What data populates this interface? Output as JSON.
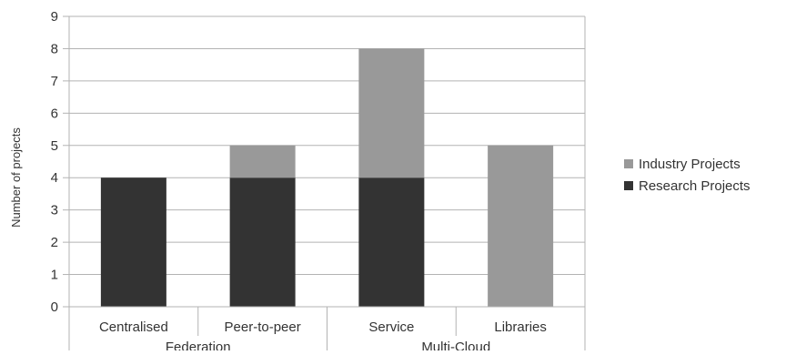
{
  "chart_data": {
    "type": "bar",
    "stacked": true,
    "categories": [
      "Centralised",
      "Peer-to-peer",
      "Service",
      "Libraries"
    ],
    "category_groups": [
      {
        "label": "Federation",
        "categories": [
          "Centralised",
          "Peer-to-peer"
        ]
      },
      {
        "label": "Multi-Cloud",
        "categories": [
          "Service",
          "Libraries"
        ]
      }
    ],
    "series": [
      {
        "name": "Research Projects",
        "values": [
          4,
          4,
          4,
          0
        ],
        "color": "#333333"
      },
      {
        "name": "Industry Projects",
        "values": [
          0,
          1,
          4,
          5
        ],
        "color": "#999999"
      }
    ],
    "ylabel": "Number of projects",
    "xlabel": "",
    "ylim": [
      0,
      9
    ],
    "yticks": [
      0,
      1,
      2,
      3,
      4,
      5,
      6,
      7,
      8,
      9
    ],
    "grid": true,
    "legend_position": "right",
    "legend_order": [
      "Industry Projects",
      "Research Projects"
    ]
  }
}
